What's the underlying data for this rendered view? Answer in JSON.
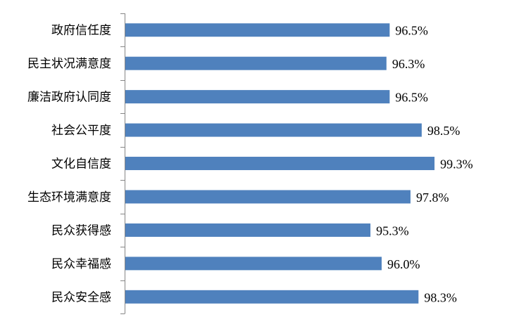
{
  "chart_data": {
    "type": "bar",
    "orientation": "horizontal",
    "categories": [
      "政府信任度",
      "民主状况满意度",
      "廉洁政府认同度",
      "社会公平度",
      "文化自信度",
      "生态环境满意度",
      "民众获得感",
      "民众幸福感",
      "民众安全感"
    ],
    "values": [
      96.5,
      96.3,
      96.5,
      98.5,
      99.3,
      97.8,
      95.3,
      96.0,
      98.3
    ],
    "data_labels": [
      "96.5%",
      "96.3%",
      "96.5%",
      "98.5%",
      "99.3%",
      "97.8%",
      "95.3%",
      "96.0%",
      "98.3%"
    ],
    "title": "",
    "xlabel": "",
    "ylabel": "",
    "xlim": [
      80,
      100
    ],
    "grid": false,
    "legend": "none",
    "bar_color": "#4F81BD",
    "axis_color": "#868686"
  }
}
